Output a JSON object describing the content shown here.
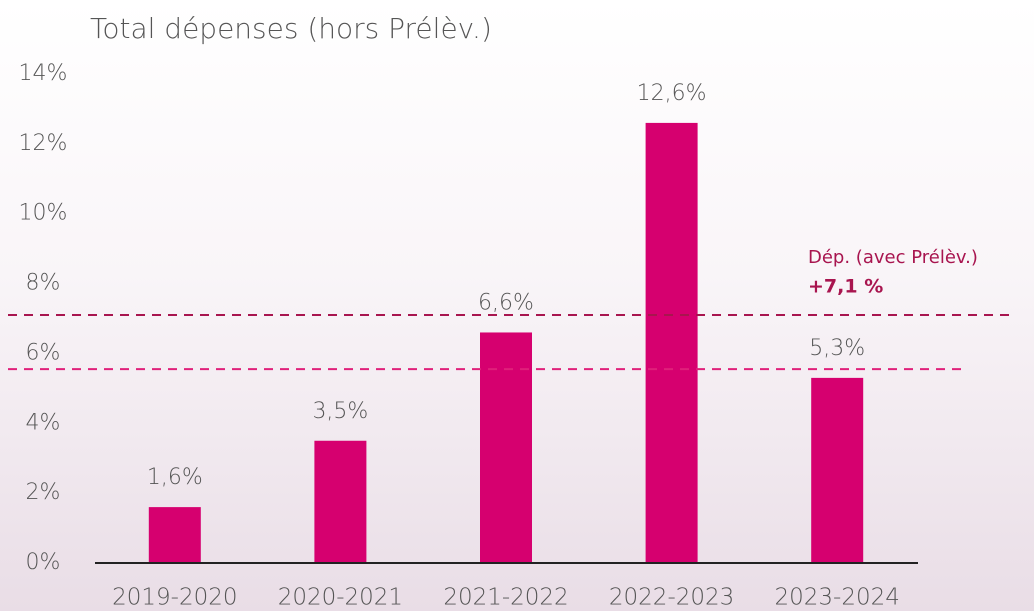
{
  "chart_data": {
    "type": "bar",
    "title": "Total dépenses (hors Prélèv.)",
    "categories": [
      "2019-2020",
      "2020-2021",
      "2021-2022",
      "2022-2023",
      "2023-2024"
    ],
    "values": [
      1.6,
      3.5,
      6.6,
      12.6,
      5.3
    ],
    "value_labels": [
      "1,6%",
      "3,5%",
      "6,6%",
      "12,6%",
      "5,3%"
    ],
    "color": "#d6006f",
    "ylim": [
      0,
      14
    ],
    "yticks": [
      {
        "value": 0,
        "label": "0%"
      },
      {
        "value": 2,
        "label": "2%"
      },
      {
        "value": 4,
        "label": "4%"
      },
      {
        "value": 6,
        "label": "6%"
      },
      {
        "value": 8,
        "label": "8%"
      },
      {
        "value": 10,
        "label": "10%"
      },
      {
        "value": 12,
        "label": "12%"
      },
      {
        "value": 14,
        "label": "14%"
      }
    ],
    "grid": false,
    "reference_lines": [
      {
        "value": 7.1,
        "label": "Dép. (avec Prélèv.)",
        "value_label": "+7,1 %",
        "color": "#a8154f"
      },
      {
        "value": 5.55,
        "color": "#e0207a"
      }
    ]
  }
}
